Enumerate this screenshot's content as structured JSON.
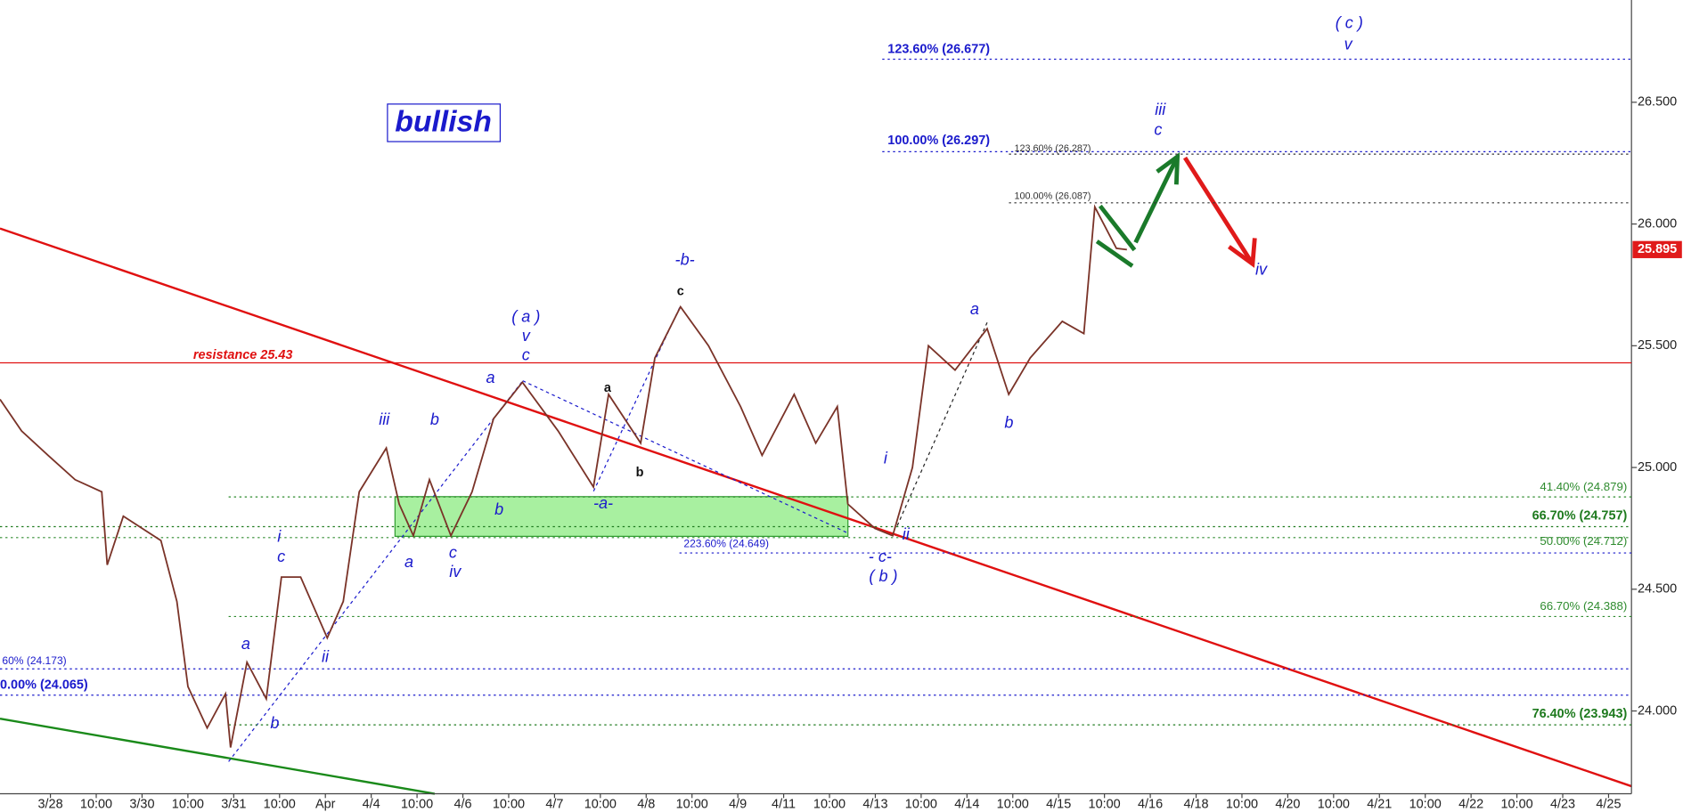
{
  "chart_data": {
    "type": "line",
    "box_label": "bullish",
    "color": "#7a3328",
    "x": [
      -1.1,
      -0.63,
      -0.05,
      0.54,
      1.12,
      1.24,
      1.59,
      2.41,
      2.76,
      3.0,
      3.42,
      3.82,
      3.93,
      4.29,
      4.71,
      5.04,
      5.46,
      6.04,
      6.39,
      6.74,
      7.33,
      7.61,
      7.92,
      8.27,
      8.74,
      9.2,
      9.67,
      10.3,
      11.08,
      11.85,
      12.18,
      12.88,
      13.19,
      13.75,
      14.36,
      15.06,
      15.53,
      16.23,
      16.7,
      17.17,
      17.4,
      17.99,
      18.38,
      18.81,
      19.16,
      19.74,
      20.44,
      20.91,
      21.38,
      22.08,
      22.55,
      22.79,
      23.26,
      23.49
    ],
    "values": [
      25.28,
      25.15,
      25.05,
      24.95,
      24.9,
      24.6,
      24.8,
      24.7,
      24.45,
      24.1,
      23.93,
      24.07,
      23.85,
      24.2,
      24.05,
      24.55,
      24.55,
      24.3,
      24.45,
      24.9,
      25.08,
      24.85,
      24.72,
      24.95,
      24.72,
      24.9,
      25.2,
      25.35,
      25.15,
      24.92,
      25.3,
      25.1,
      25.45,
      25.66,
      25.5,
      25.25,
      25.05,
      25.3,
      25.1,
      25.25,
      24.85,
      24.75,
      24.72,
      25.0,
      25.5,
      25.4,
      25.57,
      25.3,
      25.45,
      25.6,
      25.55,
      26.07,
      25.9,
      25.895
    ],
    "xlim": [
      -1.1,
      34.5
    ],
    "ylim": [
      23.66,
      26.92
    ],
    "xticks": [
      {
        "value": 0,
        "label": "3/28"
      },
      {
        "value": 1,
        "label": "10:00"
      },
      {
        "value": 2,
        "label": "3/30"
      },
      {
        "value": 3,
        "label": "10:00"
      },
      {
        "value": 4,
        "label": "3/31"
      },
      {
        "value": 5,
        "label": "10:00"
      },
      {
        "value": 6,
        "label": "Apr"
      },
      {
        "value": 7,
        "label": "4/4"
      },
      {
        "value": 8,
        "label": "10:00"
      },
      {
        "value": 9,
        "label": "4/6"
      },
      {
        "value": 10,
        "label": "10:00"
      },
      {
        "value": 11,
        "label": "4/7"
      },
      {
        "value": 12,
        "label": "10:00"
      },
      {
        "value": 13,
        "label": "4/8"
      },
      {
        "value": 14,
        "label": "10:00"
      },
      {
        "value": 15,
        "label": "4/9"
      },
      {
        "value": 16,
        "label": "4/11"
      },
      {
        "value": 17,
        "label": "10:00"
      },
      {
        "value": 18,
        "label": "4/13"
      },
      {
        "value": 19,
        "label": "10:00"
      },
      {
        "value": 20,
        "label": "4/14"
      },
      {
        "value": 21,
        "label": "10:00"
      },
      {
        "value": 22,
        "label": "4/15"
      },
      {
        "value": 23,
        "label": "10:00"
      },
      {
        "value": 24,
        "label": "4/16"
      },
      {
        "value": 25,
        "label": "4/18"
      },
      {
        "value": 26,
        "label": "10:00"
      },
      {
        "value": 27,
        "label": "4/20"
      },
      {
        "value": 28,
        "label": "10:00"
      },
      {
        "value": 29,
        "label": "4/21"
      },
      {
        "value": 30,
        "label": "10:00"
      },
      {
        "value": 31,
        "label": "4/22"
      },
      {
        "value": 32,
        "label": "10:00"
      },
      {
        "value": 33,
        "label": "4/23"
      },
      {
        "value": 34,
        "label": "4/25"
      }
    ],
    "yticks": [
      {
        "value": 24.0,
        "label": "24.000"
      },
      {
        "value": 24.5,
        "label": "24.500"
      },
      {
        "value": 25.0,
        "label": "25.000"
      },
      {
        "value": 25.5,
        "label": "25.500"
      },
      {
        "value": 26.0,
        "label": "26.000"
      },
      {
        "value": 26.5,
        "label": "26.500"
      }
    ],
    "last_price": 25.895,
    "levels": [
      {
        "label": "123.60% (26.677)",
        "value": 26.677,
        "color": "#1a1acc",
        "style": "dashed"
      },
      {
        "label": "100.00% (26.297)",
        "value": 26.297,
        "color": "#1a1acc",
        "style": "dashed"
      },
      {
        "label": "123.60% (26.287)",
        "value": 26.287,
        "color": "#333333",
        "style": "dashed"
      },
      {
        "label": "100.00% (26.087)",
        "value": 26.087,
        "color": "#333333",
        "style": "dashed"
      },
      {
        "label": "resistance 25.43",
        "value": 25.43,
        "color": "#e01010",
        "style": "solid"
      },
      {
        "label": "41.40% (24.879)",
        "value": 24.879,
        "color": "#2e8b2e",
        "style": "dashed"
      },
      {
        "label": "66.70% (24.757)",
        "value": 24.757,
        "color": "#1e7a1e",
        "style": "dashed"
      },
      {
        "label": "50.00% (24.712)",
        "value": 24.712,
        "color": "#2e8b2e",
        "style": "dashed"
      },
      {
        "label": "223.60% (24.649)",
        "value": 24.649,
        "color": "#1a1acc",
        "style": "dashed"
      },
      {
        "label": "66.70% (24.388)",
        "value": 24.388,
        "color": "#2e8b2e",
        "style": "dashed"
      },
      {
        "label": "60% (24.173)",
        "value": 24.173,
        "color": "#1a1acc",
        "style": "dashed"
      },
      {
        "label": "0.00% (24.065)",
        "value": 24.065,
        "color": "#1a1acc",
        "style": "dashed"
      },
      {
        "label": "76.40% (23.943)",
        "value": 23.943,
        "color": "#1e7a1e",
        "style": "dashed"
      }
    ],
    "wave_labels": [
      "( c )",
      "v",
      "iii",
      "c",
      "iv",
      "a",
      "b",
      "-b-",
      "c",
      "( a )",
      "v",
      "c",
      "a",
      "iii",
      "b",
      "a",
      "b",
      "-a-",
      "b",
      "i",
      "c",
      "a",
      "ii",
      "b",
      "a",
      "c",
      "iv",
      "i",
      "ii",
      "- c-",
      "( b )"
    ]
  }
}
